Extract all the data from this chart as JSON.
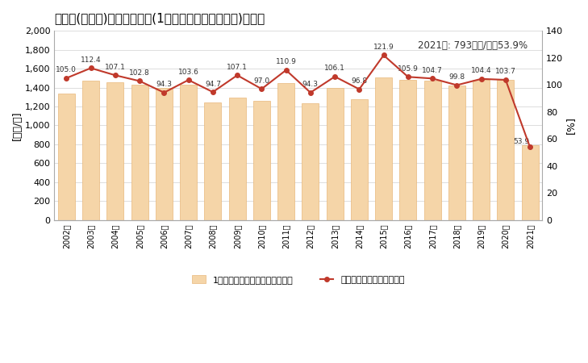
{
  "title": "名護市(沖縄県)の労働生産性(1人当たり粗付加価値額)の推移",
  "years": [
    "2002年",
    "2003年",
    "2004年",
    "2005年",
    "2006年",
    "2007年",
    "2008年",
    "2009年",
    "2010年",
    "2011年",
    "2012年",
    "2013年",
    "2014年",
    "2015年",
    "2016年",
    "2017年",
    "2018年",
    "2019年",
    "2020年",
    "2021年"
  ],
  "bar_values": [
    1340,
    1470,
    1460,
    1430,
    1400,
    1430,
    1240,
    1290,
    1260,
    1450,
    1230,
    1400,
    1280,
    1510,
    1480,
    1470,
    1420,
    1480,
    1480,
    793
  ],
  "line_values": [
    105.0,
    112.4,
    107.1,
    102.8,
    94.3,
    103.6,
    94.7,
    107.1,
    97.0,
    110.9,
    94.3,
    106.1,
    96.8,
    121.9,
    105.9,
    104.7,
    99.8,
    104.4,
    103.7,
    53.9
  ],
  "bar_color": "#F5D5A8",
  "bar_edge_color": "#E8B87A",
  "line_color": "#C0392B",
  "marker_color": "#C0392B",
  "left_ylabel": "[万円/人]",
  "right_ylabel": "[%]",
  "left_ylim": [
    0,
    2000
  ],
  "right_ylim": [
    0,
    140
  ],
  "left_yticks": [
    0,
    200,
    400,
    600,
    800,
    1000,
    1200,
    1400,
    1600,
    1800,
    2000
  ],
  "right_yticks": [
    0,
    20,
    40,
    60,
    80,
    100,
    120,
    140
  ],
  "annotation": "2021年: 793万円/人，53.9%",
  "legend_bar": "1人当たり粗付加価値額（左軸）",
  "legend_line": "対全国比（右軸）（右軸）",
  "line_labels": [
    105.0,
    112.4,
    107.1,
    102.8,
    94.3,
    103.6,
    94.7,
    107.1,
    97.0,
    110.9,
    94.3,
    106.1,
    96.8,
    121.9,
    105.9,
    104.7,
    99.8,
    104.4,
    103.7,
    53.9
  ],
  "background_color": "#FFFFFF",
  "grid_color": "#DDDDDD",
  "title_fontsize": 11,
  "label_fontsize": 9,
  "tick_fontsize": 8
}
